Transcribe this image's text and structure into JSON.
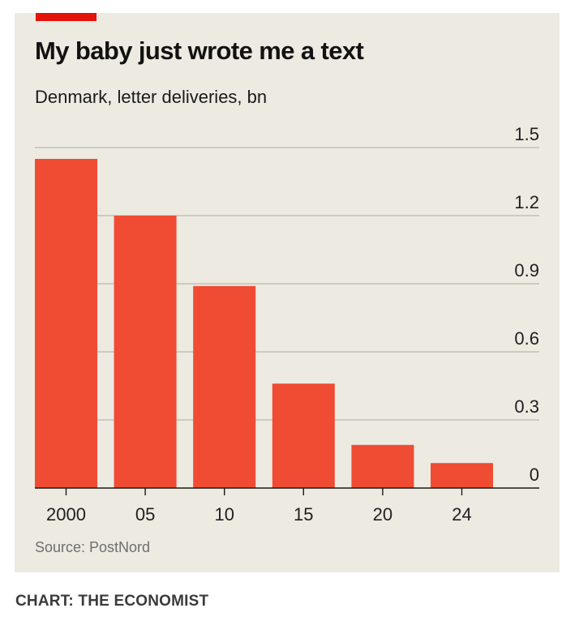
{
  "title": "My baby just wrote me a text",
  "subtitle": "Denmark, letter deliveries, bn",
  "source": "Source: PostNord",
  "credit": "CHART: THE ECONOMIST",
  "colors": {
    "bar": "#f04b33",
    "accent": "#e3120b",
    "background": "#eceae1"
  },
  "chart_data": {
    "type": "bar",
    "categories": [
      "2000",
      "05",
      "10",
      "15",
      "20",
      "24"
    ],
    "values": [
      1.45,
      1.2,
      0.89,
      0.46,
      0.19,
      0.11
    ],
    "ylim": [
      0,
      1.5
    ],
    "yticks": [
      "0",
      "0.3",
      "0.6",
      "0.9",
      "1.2",
      "1.5"
    ],
    "grid": true,
    "y_axis_position": "right"
  }
}
